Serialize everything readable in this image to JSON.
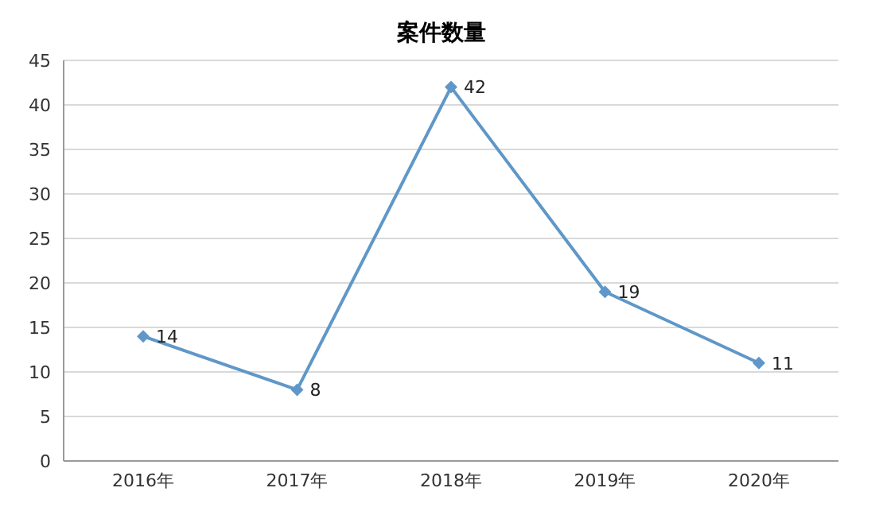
{
  "chart_data": {
    "type": "line",
    "title": "案件数量",
    "categories": [
      "2016年",
      "2017年",
      "2018年",
      "2019年",
      "2020年"
    ],
    "series": [
      {
        "color": "#5f97c8",
        "values": [
          14,
          8,
          42,
          19,
          11
        ]
      }
    ],
    "ylim": [
      0,
      45
    ],
    "yticks": [
      0,
      5,
      10,
      15,
      20,
      25,
      30,
      35,
      40,
      45
    ],
    "grid": "y",
    "marker": "diamond",
    "line_style": "solid",
    "data_labels": true
  }
}
